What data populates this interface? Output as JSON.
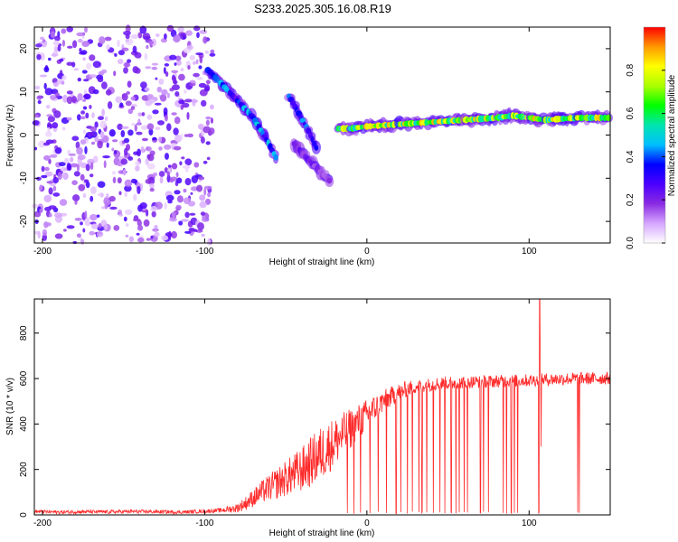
{
  "title": "S233.2025.305.16.08.R19",
  "chart_data": [
    {
      "type": "heatmap",
      "title": "S233.2025.305.16.08.R19",
      "xlabel": "Height of straight line (km)",
      "ylabel": "Frequency (Hz)",
      "xlim": [
        -205,
        150
      ],
      "ylim": [
        -25,
        25
      ],
      "xticks": [
        -200,
        -100,
        0,
        100
      ],
      "yticks": [
        -20,
        -10,
        0,
        10,
        20
      ],
      "colorbar": {
        "label": "Normalized spectral amplitude",
        "range": [
          0.0,
          1.0
        ],
        "ticks": [
          "0.0",
          "0.2",
          "0.4",
          "0.6",
          "0.8"
        ],
        "tick_values": [
          0.0,
          0.2,
          0.4,
          0.6,
          0.8
        ],
        "colors": [
          "#ffffff",
          "#d6a6ff",
          "#8a2be2",
          "#4b00ff",
          "#0000ff",
          "#00bfff",
          "#00e5b0",
          "#00ff00",
          "#aaff00",
          "#ffff00",
          "#ff9900",
          "#ff0000"
        ]
      },
      "noise_region": {
        "x_range": [
          -205,
          -95
        ],
        "y_range": [
          -25,
          25
        ],
        "max_amplitude": 0.3
      },
      "ridges": [
        {
          "name": "main-track",
          "x": [
            -18,
            -10,
            0,
            20,
            40,
            60,
            80,
            90,
            100,
            110,
            130,
            150
          ],
          "y": [
            1.5,
            1.5,
            2,
            2.5,
            3,
            3.5,
            4,
            4.5,
            4,
            3.5,
            4,
            4
          ],
          "amplitude": 0.9
        },
        {
          "name": "left-branch",
          "x": [
            -98,
            -90,
            -80,
            -70,
            -62,
            -55
          ],
          "y": [
            15,
            12,
            8,
            4,
            -1,
            -6
          ],
          "amplitude": 0.5
        },
        {
          "name": "mid-branch",
          "x": [
            -48,
            -42,
            -36,
            -30
          ],
          "y": [
            9,
            5,
            1,
            -4
          ],
          "amplitude": 0.45
        },
        {
          "name": "lower-branch",
          "x": [
            -45,
            -38,
            -30,
            -22
          ],
          "y": [
            -2,
            -5,
            -8,
            -11
          ],
          "amplitude": 0.25
        }
      ]
    },
    {
      "type": "line",
      "xlabel": "Height of straight line (km)",
      "ylabel": "SNR (10 * v/v)",
      "xlim": [
        -205,
        150
      ],
      "ylim": [
        0,
        950
      ],
      "xticks": [
        -200,
        -100,
        0,
        100
      ],
      "yticks": [
        0,
        200,
        400,
        600,
        800
      ],
      "series": [
        {
          "name": "SNR",
          "color": "#ff2a2a",
          "x": [
            -205,
            -190,
            -175,
            -160,
            -145,
            -130,
            -115,
            -100,
            -90,
            -80,
            -75,
            -70,
            -65,
            -60,
            -55,
            -50,
            -45,
            -40,
            -35,
            -30,
            -25,
            -20,
            -15,
            -10,
            -5,
            0,
            5,
            10,
            15,
            20,
            25,
            30,
            35,
            40,
            45,
            50,
            55,
            60,
            65,
            70,
            75,
            80,
            85,
            90,
            95,
            100,
            105,
            110,
            115,
            120,
            125,
            130,
            135,
            140,
            145,
            150
          ],
          "y": [
            15,
            12,
            14,
            13,
            15,
            14,
            12,
            16,
            20,
            30,
            50,
            75,
            100,
            120,
            140,
            160,
            180,
            200,
            230,
            260,
            290,
            320,
            350,
            380,
            410,
            440,
            470,
            500,
            520,
            540,
            555,
            565,
            570,
            575,
            578,
            580,
            582,
            583,
            585,
            586,
            587,
            588,
            589,
            590,
            591,
            592,
            594,
            596,
            597,
            598,
            599,
            600,
            600,
            600,
            601,
            602
          ],
          "noise": [
            8,
            8,
            8,
            8,
            8,
            8,
            8,
            8,
            10,
            20,
            30,
            40,
            50,
            60,
            70,
            80,
            90,
            100,
            110,
            120,
            120,
            110,
            100,
            90,
            80,
            70,
            60,
            50,
            45,
            40,
            35,
            30,
            30,
            30,
            30,
            30,
            28,
            28,
            28,
            28,
            28,
            28,
            28,
            28,
            28,
            28,
            28,
            28,
            28,
            28,
            28,
            28,
            28,
            28,
            28,
            28
          ],
          "dropouts_x": [
            -12,
            -8,
            -4,
            2,
            7,
            12,
            18,
            21,
            25,
            28,
            32,
            34,
            37,
            41,
            45,
            48,
            52,
            55,
            57,
            60,
            62,
            70,
            72,
            75,
            84,
            86,
            89,
            91,
            93,
            106,
            130,
            131
          ],
          "spikes": [
            {
              "x": 106.5,
              "y": 950
            },
            {
              "x": 107.5,
              "y": 300
            }
          ]
        }
      ]
    }
  ]
}
